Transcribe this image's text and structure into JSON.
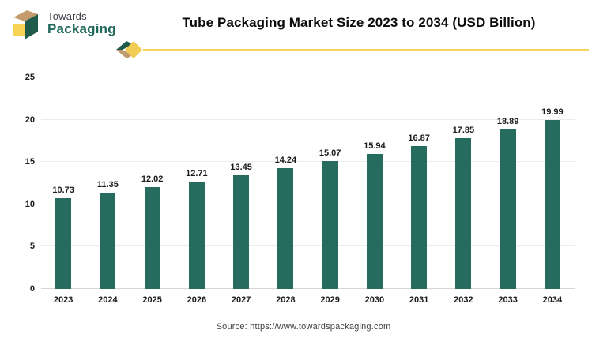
{
  "header": {
    "logo": {
      "line1": "Towards",
      "line2": "Packaging"
    },
    "title": "Tube Packaging Market Size 2023 to 2034 (USD Billion)"
  },
  "chart_data": {
    "type": "bar",
    "title": "Tube Packaging Market Size 2023 to 2034 (USD Billion)",
    "categories": [
      "2023",
      "2024",
      "2025",
      "2026",
      "2027",
      "2028",
      "2029",
      "2030",
      "2031",
      "2032",
      "2033",
      "2034"
    ],
    "values": [
      10.73,
      11.35,
      12.02,
      12.71,
      13.45,
      14.24,
      15.07,
      15.94,
      16.87,
      17.85,
      18.89,
      19.99
    ],
    "xlabel": "",
    "ylabel": "",
    "ylim": [
      0,
      25
    ],
    "yticks": [
      0,
      5,
      10,
      15,
      20,
      25
    ],
    "grid": true,
    "legend": false,
    "value_labels": true,
    "bar_color": "#256c5e"
  },
  "footer": {
    "source": "Source: https://www.towardspackaging.com"
  },
  "colors": {
    "bar": "#256c5e",
    "accent_yellow": "#f5d45c",
    "accent_green": "#1e5b4b",
    "accent_tan": "#c09b72",
    "gridline": "#ececec"
  }
}
